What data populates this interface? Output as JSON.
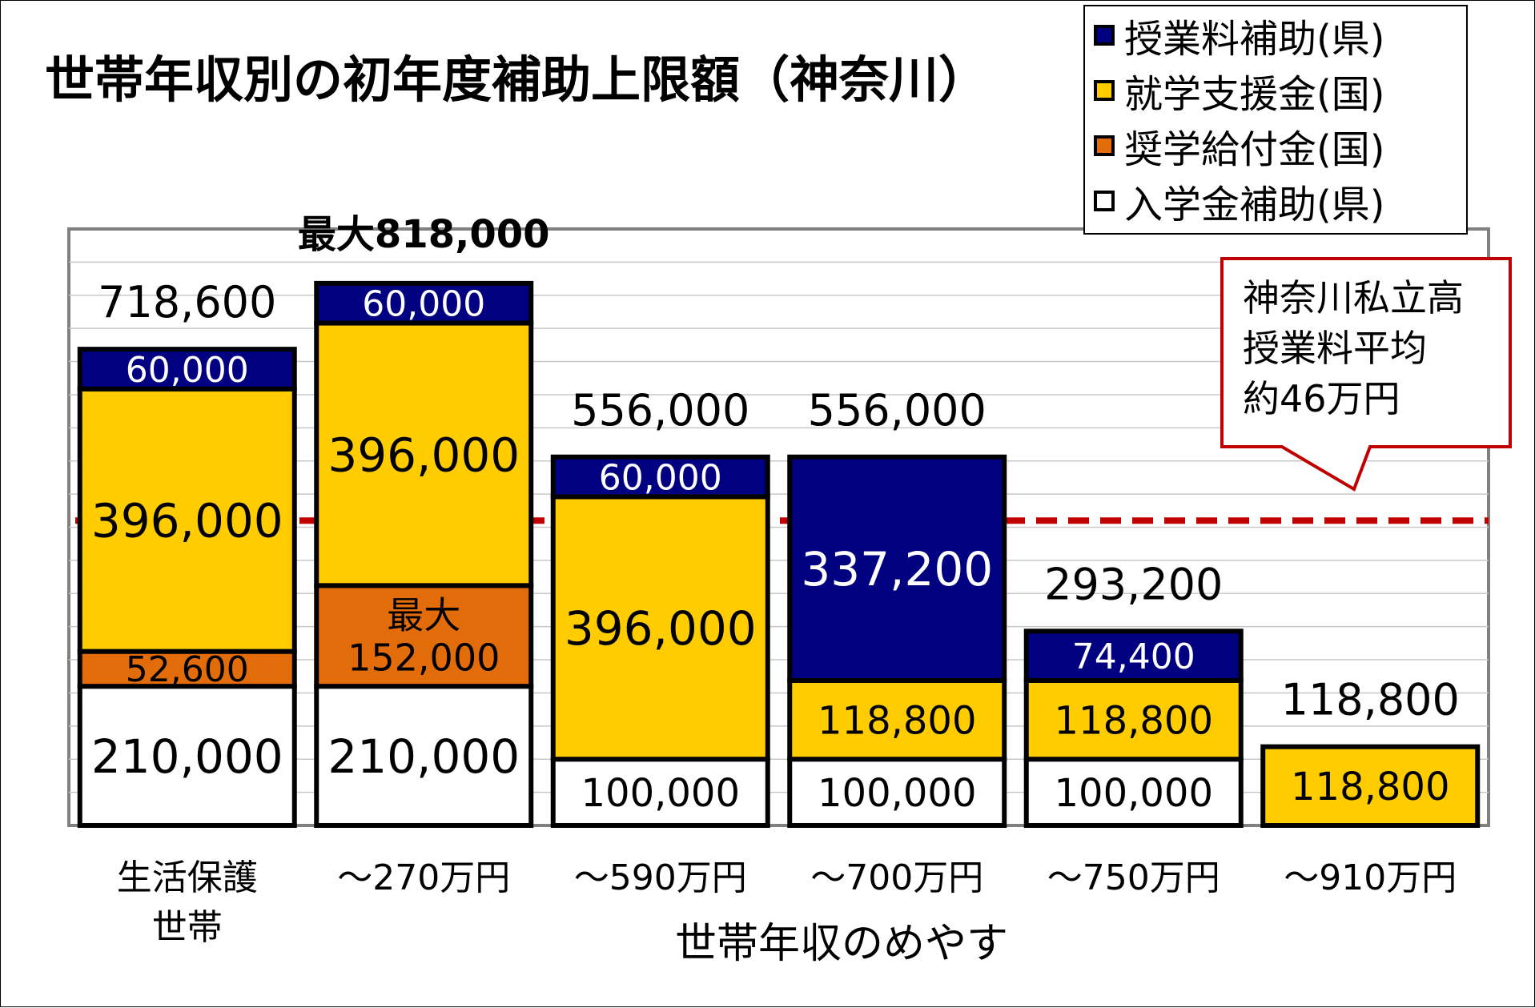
{
  "chart_data": {
    "type": "bar",
    "stacked": true,
    "title": "世帯年収別の初年度補助上限額（神奈川）",
    "xlabel": "世帯年収のめやす",
    "ylabel": "",
    "ylim": [
      0,
      900000
    ],
    "grid": true,
    "legend_position": "top-right",
    "categories": [
      [
        "生活保護",
        "世帯"
      ],
      [
        "～270万円"
      ],
      [
        "～590万円"
      ],
      [
        "～700万円"
      ],
      [
        "～750万円"
      ],
      [
        "～910万円"
      ]
    ],
    "series": [
      {
        "name": "入学金補助(県)",
        "color": "#ffffff",
        "values": [
          210000,
          210000,
          100000,
          100000,
          100000,
          0
        ],
        "labels": [
          "210,000",
          "210,000",
          "100,000",
          "100,000",
          "100,000",
          ""
        ],
        "label_color": "#000000"
      },
      {
        "name": "奨学給付金(国)",
        "color": "#e36c0a",
        "values": [
          52600,
          152000,
          0,
          0,
          0,
          0
        ],
        "labels": [
          "52,600",
          "最大\n152,000",
          "",
          "",
          "",
          ""
        ],
        "label_color": "#000000"
      },
      {
        "name": "就学支援金(国)",
        "color": "#ffcc00",
        "values": [
          396000,
          396000,
          396000,
          118800,
          118800,
          118800
        ],
        "labels": [
          "396,000",
          "396,000",
          "396,000",
          "118,800",
          "118,800",
          "118,800"
        ],
        "label_color": "#000000"
      },
      {
        "name": "授業料補助(県)",
        "color": "#000080",
        "values": [
          60000,
          60000,
          60000,
          337200,
          74400,
          0
        ],
        "labels": [
          "60,000",
          "60,000",
          "60,000",
          "337,200",
          "74,400",
          ""
        ],
        "label_color": "#ffffff"
      }
    ],
    "totals": [
      "718,600",
      "最大818,000",
      "556,000",
      "556,000",
      "293,200",
      "118,800"
    ],
    "reference_line": {
      "value": 460000,
      "color": "#c00000"
    },
    "annotation": {
      "lines": [
        "神奈川私立高",
        "授業料平均",
        "約46万円"
      ],
      "border_color": "#c00000"
    },
    "legend_order": [
      "授業料補助(県)",
      "就学支援金(国)",
      "奨学給付金(国)",
      "入学金補助(県)"
    ]
  }
}
